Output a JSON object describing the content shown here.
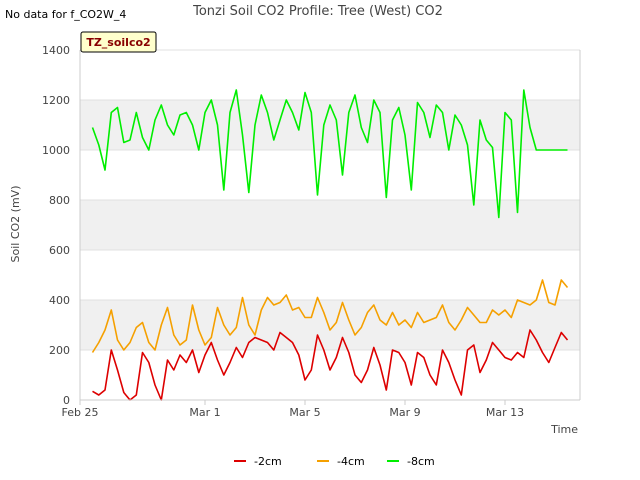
{
  "note": "No data for f_CO2W_4",
  "badge": "TZ_soilco2",
  "chart_data": {
    "type": "line",
    "title": "Tonzi Soil CO2 Profile: Tree (West) CO2",
    "xlabel": "Time",
    "ylabel": "Soil CO2 (mV)",
    "ylim": [
      0,
      1400
    ],
    "yticks": [
      0,
      200,
      400,
      600,
      800,
      1000,
      1200,
      1400
    ],
    "xlim": [
      "2024-02-25",
      "2024-03-16"
    ],
    "xticks": [
      {
        "date": "2024-02-25",
        "label": "Feb 25"
      },
      {
        "date": "2024-03-01",
        "label": "Mar 1"
      },
      {
        "date": "2024-03-05",
        "label": "Mar 5"
      },
      {
        "date": "2024-03-09",
        "label": "Mar 9"
      },
      {
        "date": "2024-03-13",
        "label": "Mar 13"
      }
    ],
    "grid": "horizontal bands",
    "legend": "bottom",
    "series": [
      {
        "name": "-2cm",
        "color": "#dd0000",
        "x": [
          "2024-02-25 12:00",
          "2024-02-25 18:00",
          "2024-02-26 00:00",
          "2024-02-26 06:00",
          "2024-02-26 12:00",
          "2024-02-26 18:00",
          "2024-02-27 00:00",
          "2024-02-27 06:00",
          "2024-02-27 12:00",
          "2024-02-27 18:00",
          "2024-02-28 00:00",
          "2024-02-28 06:00",
          "2024-02-28 12:00",
          "2024-02-28 18:00",
          "2024-02-29 00:00",
          "2024-02-29 06:00",
          "2024-02-29 12:00",
          "2024-02-29 18:00",
          "2024-03-01 00:00",
          "2024-03-01 06:00",
          "2024-03-01 12:00",
          "2024-03-01 18:00",
          "2024-03-02 00:00",
          "2024-03-02 06:00",
          "2024-03-02 12:00",
          "2024-03-02 18:00",
          "2024-03-03 00:00",
          "2024-03-03 06:00",
          "2024-03-03 12:00",
          "2024-03-03 18:00",
          "2024-03-04 00:00",
          "2024-03-04 06:00",
          "2024-03-04 12:00",
          "2024-03-04 18:00",
          "2024-03-05 00:00",
          "2024-03-05 06:00",
          "2024-03-05 12:00",
          "2024-03-05 18:00",
          "2024-03-06 00:00",
          "2024-03-06 06:00",
          "2024-03-06 12:00",
          "2024-03-06 18:00",
          "2024-03-07 00:00",
          "2024-03-07 06:00",
          "2024-03-07 12:00",
          "2024-03-07 18:00",
          "2024-03-08 00:00",
          "2024-03-08 06:00",
          "2024-03-08 12:00",
          "2024-03-08 18:00",
          "2024-03-09 00:00",
          "2024-03-09 06:00",
          "2024-03-09 12:00",
          "2024-03-09 18:00",
          "2024-03-10 00:00",
          "2024-03-10 06:00",
          "2024-03-10 12:00",
          "2024-03-10 18:00",
          "2024-03-11 00:00",
          "2024-03-11 06:00",
          "2024-03-11 12:00",
          "2024-03-11 18:00",
          "2024-03-12 00:00",
          "2024-03-12 06:00",
          "2024-03-12 12:00",
          "2024-03-12 18:00",
          "2024-03-13 00:00",
          "2024-03-13 06:00",
          "2024-03-13 12:00",
          "2024-03-13 18:00",
          "2024-03-14 00:00",
          "2024-03-14 06:00",
          "2024-03-14 12:00",
          "2024-03-14 18:00",
          "2024-03-15 00:00",
          "2024-03-15 06:00",
          "2024-03-15 12:00"
        ],
        "y": [
          35,
          20,
          40,
          200,
          120,
          30,
          0,
          20,
          190,
          150,
          60,
          0,
          160,
          120,
          180,
          150,
          200,
          110,
          180,
          230,
          160,
          100,
          150,
          210,
          170,
          230,
          250,
          240,
          230,
          200,
          270,
          250,
          230,
          180,
          80,
          120,
          260,
          200,
          120,
          170,
          250,
          190,
          100,
          70,
          120,
          210,
          140,
          40,
          200,
          190,
          150,
          60,
          190,
          170,
          100,
          60,
          200,
          150,
          80,
          20,
          200,
          220,
          110,
          160,
          230,
          200,
          170,
          160,
          190,
          170,
          280,
          240,
          190,
          150,
          210,
          270,
          240
        ]
      },
      {
        "name": "-4cm",
        "color": "#f5a000",
        "x": [
          "2024-02-25 12:00",
          "2024-02-25 18:00",
          "2024-02-26 00:00",
          "2024-02-26 06:00",
          "2024-02-26 12:00",
          "2024-02-26 18:00",
          "2024-02-27 00:00",
          "2024-02-27 06:00",
          "2024-02-27 12:00",
          "2024-02-27 18:00",
          "2024-02-28 00:00",
          "2024-02-28 06:00",
          "2024-02-28 12:00",
          "2024-02-28 18:00",
          "2024-02-29 00:00",
          "2024-02-29 06:00",
          "2024-02-29 12:00",
          "2024-02-29 18:00",
          "2024-03-01 00:00",
          "2024-03-01 06:00",
          "2024-03-01 12:00",
          "2024-03-01 18:00",
          "2024-03-02 00:00",
          "2024-03-02 06:00",
          "2024-03-02 12:00",
          "2024-03-02 18:00",
          "2024-03-03 00:00",
          "2024-03-03 06:00",
          "2024-03-03 12:00",
          "2024-03-03 18:00",
          "2024-03-04 00:00",
          "2024-03-04 06:00",
          "2024-03-04 12:00",
          "2024-03-04 18:00",
          "2024-03-05 00:00",
          "2024-03-05 06:00",
          "2024-03-05 12:00",
          "2024-03-05 18:00",
          "2024-03-06 00:00",
          "2024-03-06 06:00",
          "2024-03-06 12:00",
          "2024-03-06 18:00",
          "2024-03-07 00:00",
          "2024-03-07 06:00",
          "2024-03-07 12:00",
          "2024-03-07 18:00",
          "2024-03-08 00:00",
          "2024-03-08 06:00",
          "2024-03-08 12:00",
          "2024-03-08 18:00",
          "2024-03-09 00:00",
          "2024-03-09 06:00",
          "2024-03-09 12:00",
          "2024-03-09 18:00",
          "2024-03-10 00:00",
          "2024-03-10 06:00",
          "2024-03-10 12:00",
          "2024-03-10 18:00",
          "2024-03-11 00:00",
          "2024-03-11 06:00",
          "2024-03-11 12:00",
          "2024-03-11 18:00",
          "2024-03-12 00:00",
          "2024-03-12 06:00",
          "2024-03-12 12:00",
          "2024-03-12 18:00",
          "2024-03-13 00:00",
          "2024-03-13 06:00",
          "2024-03-13 12:00",
          "2024-03-13 18:00",
          "2024-03-14 00:00",
          "2024-03-14 06:00",
          "2024-03-14 12:00",
          "2024-03-14 18:00",
          "2024-03-15 00:00",
          "2024-03-15 06:00",
          "2024-03-15 12:00"
        ],
        "y": [
          190,
          230,
          280,
          360,
          240,
          200,
          230,
          290,
          310,
          230,
          200,
          300,
          370,
          260,
          220,
          240,
          380,
          280,
          220,
          250,
          370,
          300,
          260,
          290,
          410,
          300,
          260,
          360,
          410,
          380,
          390,
          420,
          360,
          370,
          330,
          330,
          410,
          350,
          280,
          310,
          390,
          320,
          260,
          290,
          350,
          380,
          320,
          300,
          350,
          300,
          320,
          290,
          350,
          310,
          320,
          330,
          380,
          310,
          280,
          320,
          370,
          340,
          310,
          310,
          360,
          340,
          360,
          330,
          400,
          390,
          380,
          400,
          480,
          390,
          380,
          480,
          450
        ]
      },
      {
        "name": "-8cm",
        "color": "#00ee00",
        "x": [
          "2024-02-25 12:00",
          "2024-02-25 18:00",
          "2024-02-26 00:00",
          "2024-02-26 06:00",
          "2024-02-26 12:00",
          "2024-02-26 18:00",
          "2024-02-27 00:00",
          "2024-02-27 06:00",
          "2024-02-27 12:00",
          "2024-02-27 18:00",
          "2024-02-28 00:00",
          "2024-02-28 06:00",
          "2024-02-28 12:00",
          "2024-02-28 18:00",
          "2024-02-29 00:00",
          "2024-02-29 06:00",
          "2024-02-29 12:00",
          "2024-02-29 18:00",
          "2024-03-01 00:00",
          "2024-03-01 06:00",
          "2024-03-01 12:00",
          "2024-03-01 18:00",
          "2024-03-02 00:00",
          "2024-03-02 06:00",
          "2024-03-02 12:00",
          "2024-03-02 18:00",
          "2024-03-03 00:00",
          "2024-03-03 06:00",
          "2024-03-03 12:00",
          "2024-03-03 18:00",
          "2024-03-04 00:00",
          "2024-03-04 06:00",
          "2024-03-04 12:00",
          "2024-03-04 18:00",
          "2024-03-05 00:00",
          "2024-03-05 06:00",
          "2024-03-05 12:00",
          "2024-03-05 18:00",
          "2024-03-06 00:00",
          "2024-03-06 06:00",
          "2024-03-06 12:00",
          "2024-03-06 18:00",
          "2024-03-07 00:00",
          "2024-03-07 06:00",
          "2024-03-07 12:00",
          "2024-03-07 18:00",
          "2024-03-08 00:00",
          "2024-03-08 06:00",
          "2024-03-08 12:00",
          "2024-03-08 18:00",
          "2024-03-09 00:00",
          "2024-03-09 06:00",
          "2024-03-09 12:00",
          "2024-03-09 18:00",
          "2024-03-10 00:00",
          "2024-03-10 06:00",
          "2024-03-10 12:00",
          "2024-03-10 18:00",
          "2024-03-11 00:00",
          "2024-03-11 06:00",
          "2024-03-11 12:00",
          "2024-03-11 18:00",
          "2024-03-12 00:00",
          "2024-03-12 06:00",
          "2024-03-12 12:00",
          "2024-03-12 18:00",
          "2024-03-13 00:00",
          "2024-03-13 06:00",
          "2024-03-13 12:00",
          "2024-03-13 18:00",
          "2024-03-14 00:00",
          "2024-03-14 06:00",
          "2024-03-14 12:00",
          "2024-03-14 18:00",
          "2024-03-15 00:00",
          "2024-03-15 06:00",
          "2024-03-15 12:00"
        ],
        "y": [
          1090,
          1020,
          920,
          1150,
          1170,
          1030,
          1040,
          1150,
          1050,
          1000,
          1120,
          1180,
          1100,
          1060,
          1140,
          1150,
          1100,
          1000,
          1150,
          1200,
          1100,
          840,
          1150,
          1240,
          1060,
          830,
          1100,
          1220,
          1150,
          1040,
          1120,
          1200,
          1150,
          1080,
          1230,
          1150,
          820,
          1100,
          1180,
          1120,
          900,
          1150,
          1220,
          1090,
          1030,
          1200,
          1150,
          810,
          1120,
          1170,
          1060,
          840,
          1190,
          1150,
          1050,
          1180,
          1150,
          1000,
          1140,
          1100,
          1020,
          780,
          1120,
          1040,
          1010,
          730,
          1150,
          1120,
          750,
          1240,
          1090,
          1000,
          1000,
          1000,
          1000,
          1000,
          1000
        ]
      }
    ]
  }
}
